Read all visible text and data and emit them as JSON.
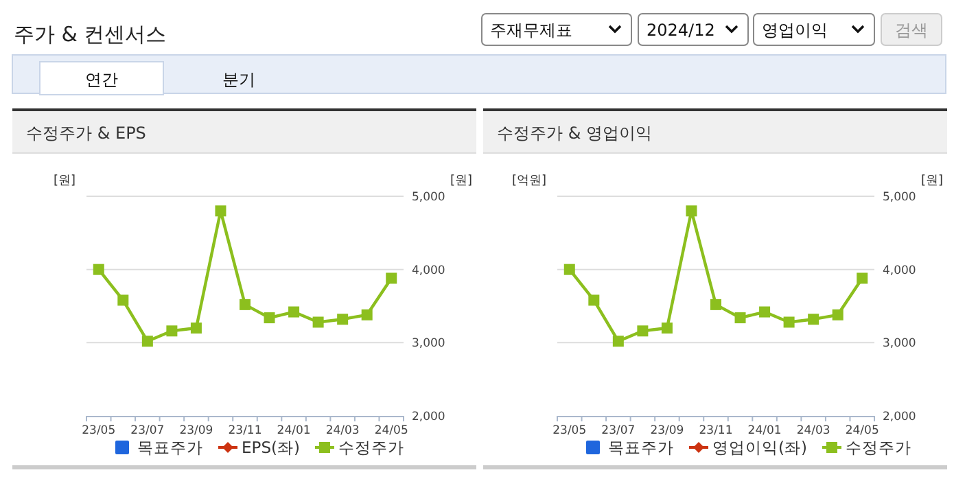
{
  "chart_data": [
    {
      "type": "other",
      "title": "주가 & 컨센서스",
      "annotations": [
        "주재무제표",
        "2024/12",
        "영업이익",
        "검색",
        "연간",
        "분기"
      ]
    },
    {
      "type": "line",
      "title": "수정주가 & EPS",
      "ylabel": "[원]",
      "y2label": "[원]",
      "categories": [
        "23/05",
        null,
        "23/07",
        null,
        "23/09",
        null,
        "23/11",
        null,
        "24/01",
        null,
        "24/03",
        null,
        "24/05"
      ],
      "y2lim": [
        2000,
        5000
      ],
      "y2ticks": [
        {
          "value": 2000,
          "label": "2,000"
        },
        {
          "value": 3000,
          "label": "3,000"
        },
        {
          "value": 4000,
          "label": "4,000"
        },
        {
          "value": 5000,
          "label": "5,000"
        }
      ],
      "grid": "y",
      "legend": "bottom",
      "marker": "square",
      "series": [
        {
          "name": "목표주가",
          "color": "#1f66dd",
          "type": "bar",
          "values": [
            null,
            null,
            null,
            null,
            null,
            null,
            null,
            null,
            null,
            null,
            null,
            null,
            null
          ]
        },
        {
          "name": "EPS(좌)",
          "color": "#cc3311",
          "values": [
            null,
            null,
            null,
            null,
            null,
            null,
            null,
            null,
            null,
            null,
            null,
            null,
            null
          ]
        },
        {
          "name": "수정주가",
          "color": "#8cbf1e",
          "axis": "y2",
          "values": [
            4000,
            3580,
            3020,
            3160,
            3200,
            4800,
            3520,
            3340,
            3420,
            3280,
            3320,
            3380,
            3880
          ]
        }
      ]
    },
    {
      "type": "line",
      "title": "수정주가 & 영업이익",
      "ylabel": "[억원]",
      "y2label": "[원]",
      "categories": [
        "23/05",
        null,
        "23/07",
        null,
        "23/09",
        null,
        "23/11",
        null,
        "24/01",
        null,
        "24/03",
        null,
        "24/05"
      ],
      "y2lim": [
        2000,
        5000
      ],
      "y2ticks": [
        {
          "value": 2000,
          "label": "2,000"
        },
        {
          "value": 3000,
          "label": "3,000"
        },
        {
          "value": 4000,
          "label": "4,000"
        },
        {
          "value": 5000,
          "label": "5,000"
        }
      ],
      "grid": "y",
      "legend": "bottom",
      "marker": "square",
      "series": [
        {
          "name": "목표주가",
          "color": "#1f66dd",
          "type": "bar",
          "values": [
            null,
            null,
            null,
            null,
            null,
            null,
            null,
            null,
            null,
            null,
            null,
            null,
            null
          ]
        },
        {
          "name": "영업이익(좌)",
          "color": "#cc3311",
          "values": [
            null,
            null,
            null,
            null,
            null,
            null,
            null,
            null,
            null,
            null,
            null,
            null,
            null
          ]
        },
        {
          "name": "수정주가",
          "color": "#8cbf1e",
          "axis": "y2",
          "values": [
            4000,
            3580,
            3020,
            3160,
            3200,
            4800,
            3520,
            3340,
            3420,
            3280,
            3320,
            3380,
            3880
          ]
        }
      ]
    }
  ]
}
